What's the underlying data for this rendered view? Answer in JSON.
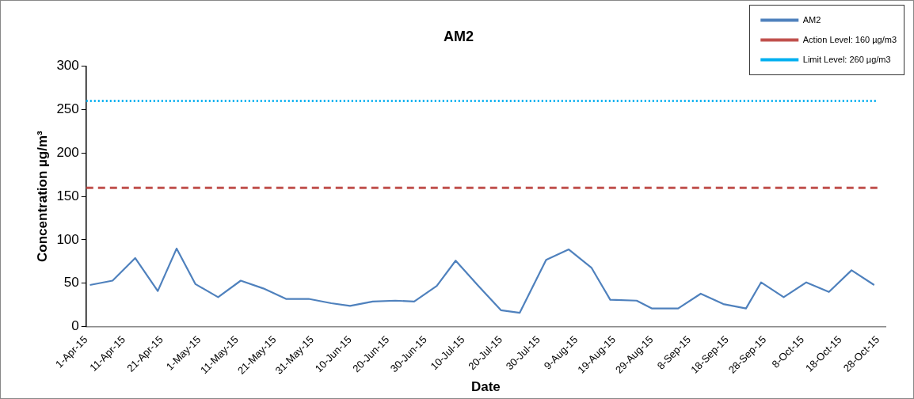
{
  "chart_data": {
    "type": "line",
    "title": "AM2",
    "xlabel": "Date",
    "ylabel": "Concentration µg/m³",
    "x": [
      "--04-02",
      "--04-08",
      "--04-14",
      "--04-20",
      "--04-25",
      "--04-30",
      "--05-06",
      "--05-12",
      "--05-18",
      "--05-24",
      "--05-30",
      "--06-05",
      "--06-10",
      "--06-16",
      "--06-22",
      "--06-27",
      "--07-03",
      "--07-08",
      "--07-14",
      "--07-20",
      "--07-25",
      "--08-01",
      "--08-07",
      "--08-13",
      "--08-18",
      "--08-25",
      "--08-29",
      "--09-05",
      "--09-11",
      "--09-17",
      "--09-23",
      "--09-27",
      "--10-03",
      "--10-09",
      "--10-15",
      "--10-21",
      "--10-27"
    ],
    "series": [
      {
        "name": "AM2",
        "color": "#4f81bd",
        "values": [
          48,
          53,
          79,
          41,
          90,
          49,
          34,
          53,
          44,
          32,
          32,
          27,
          24,
          29,
          30,
          29,
          47,
          76,
          47,
          19,
          16,
          77,
          89,
          68,
          31,
          30,
          21,
          21,
          38,
          26,
          21,
          51,
          34,
          51,
          40,
          65,
          48
        ]
      }
    ],
    "ref_lines": [
      {
        "axis": "y",
        "value": 160,
        "label": "Action Level: 160 µg/m3",
        "color": "#c0504d",
        "line_style": "dashed"
      },
      {
        "axis": "y",
        "value": 260,
        "label": "Limit Level: 260 µg/m3",
        "color": "#00b0f0",
        "line_style": "dotted"
      }
    ],
    "xlim": [
      "--04-01",
      "--10-30"
    ],
    "xticks": [
      {
        "value": "--04-01",
        "label": "1-Apr-15"
      },
      {
        "value": "--04-11",
        "label": "11-Apr-15"
      },
      {
        "value": "--04-21",
        "label": "21-Apr-15"
      },
      {
        "value": "--05-01",
        "label": "1-May-15"
      },
      {
        "value": "--05-11",
        "label": "11-May-15"
      },
      {
        "value": "--05-21",
        "label": "21-May-15"
      },
      {
        "value": "--05-31",
        "label": "31-May-15"
      },
      {
        "value": "--06-10",
        "label": "10-Jun-15"
      },
      {
        "value": "--06-20",
        "label": "20-Jun-15"
      },
      {
        "value": "--06-30",
        "label": "30-Jun-15"
      },
      {
        "value": "--07-10",
        "label": "10-Jul-15"
      },
      {
        "value": "--07-20",
        "label": "20-Jul-15"
      },
      {
        "value": "--07-30",
        "label": "30-Jul-15"
      },
      {
        "value": "--08-09",
        "label": "9-Aug-15"
      },
      {
        "value": "--08-19",
        "label": "19-Aug-15"
      },
      {
        "value": "--08-29",
        "label": "29-Aug-15"
      },
      {
        "value": "--09-08",
        "label": "8-Sep-15"
      },
      {
        "value": "--09-18",
        "label": "18-Sep-15"
      },
      {
        "value": "--09-28",
        "label": "28-Sep-15"
      },
      {
        "value": "--10-08",
        "label": "8-Oct-15"
      },
      {
        "value": "--10-18",
        "label": "18-Oct-15"
      },
      {
        "value": "--10-28",
        "label": "28-Oct-15"
      }
    ],
    "ylim": [
      0,
      300
    ],
    "yticks": [
      0,
      50,
      100,
      150,
      200,
      250,
      300
    ],
    "grid": false,
    "legend": "top right",
    "marker": "none",
    "line_style": "solid"
  }
}
